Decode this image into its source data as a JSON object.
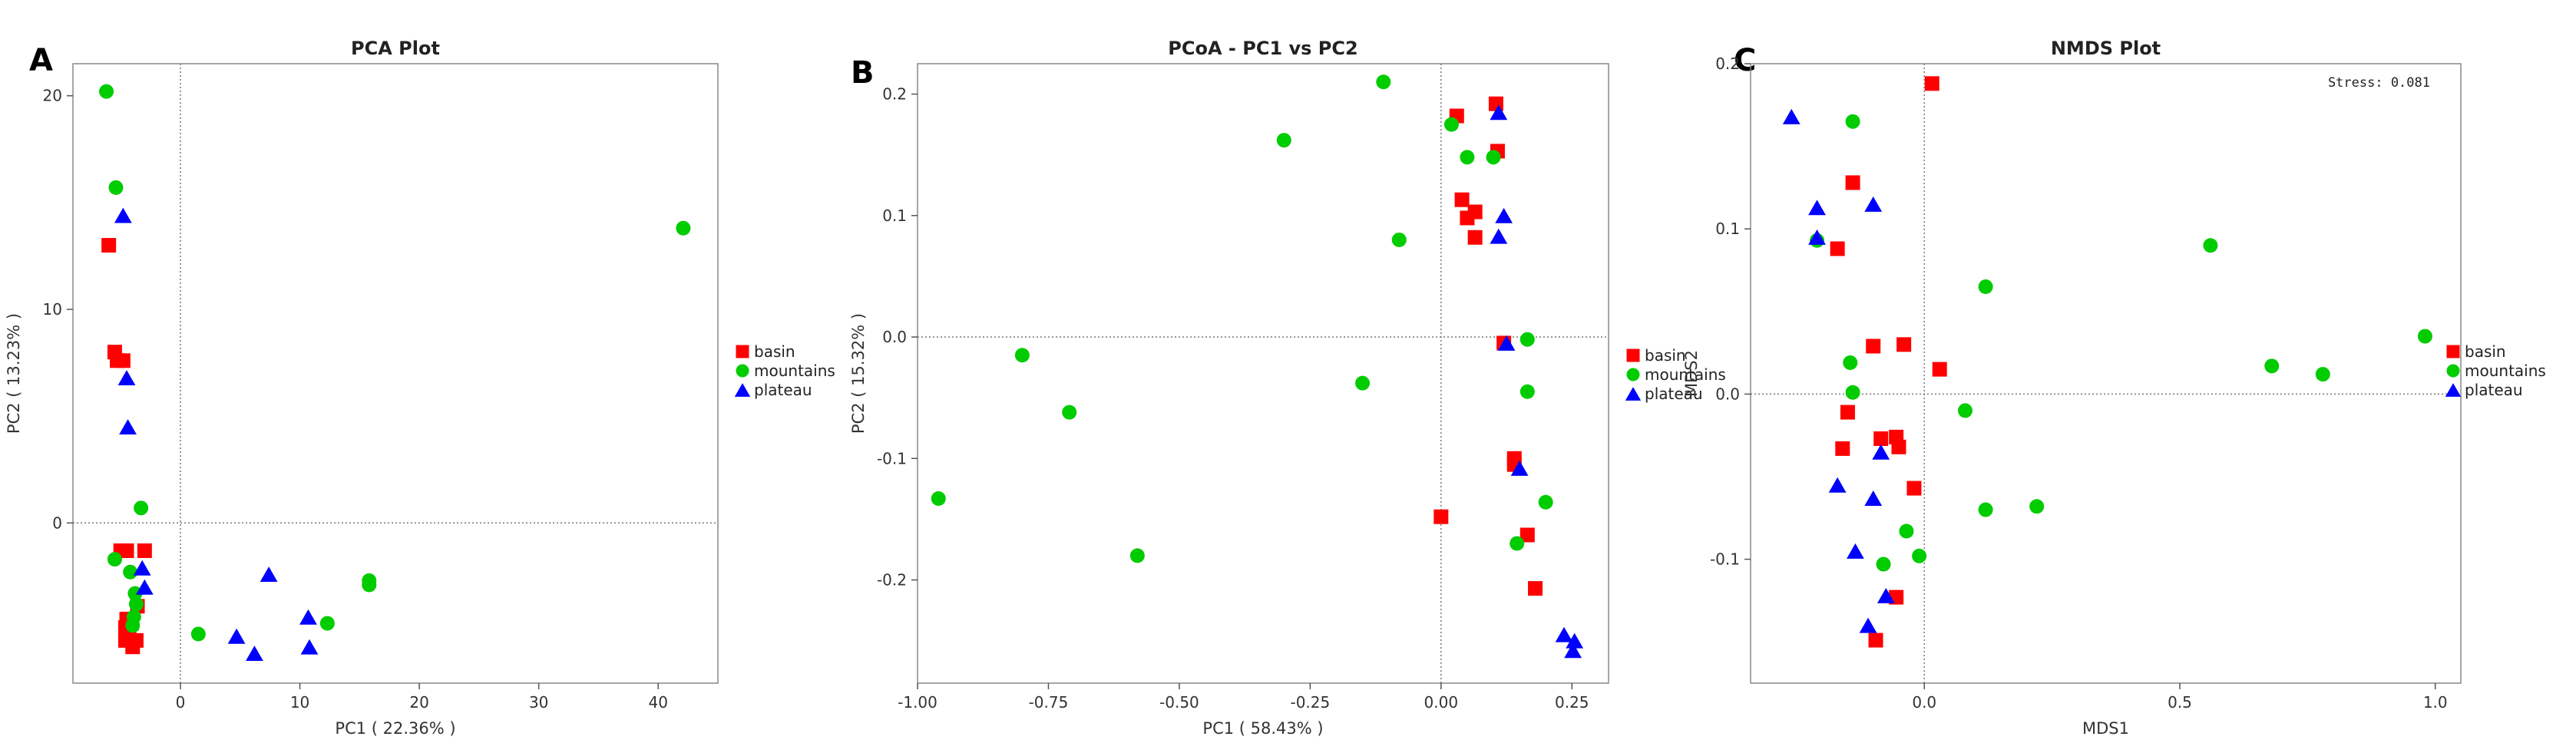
{
  "chart_data": [
    {
      "panel_letter": "A",
      "type": "scatter",
      "title": "PCA Plot",
      "xlabel": "PC1 ( 22.36% )",
      "ylabel": "PC2 ( 13.23% )",
      "xlim": [
        -9,
        45
      ],
      "ylim": [
        -7.5,
        21.5
      ],
      "xticks": [
        0,
        10,
        20,
        30,
        40
      ],
      "xtick_labels": [
        "0",
        "10",
        "20",
        "30",
        "40"
      ],
      "yticks": [
        0,
        10,
        20
      ],
      "ytick_labels": [
        "0",
        "10",
        "20"
      ],
      "ref_x": 0,
      "ref_y": 0,
      "legend_position": "right",
      "series": [
        {
          "name": "basin",
          "marker": "square",
          "color": "#ff0000",
          "points": [
            [
              -6,
              13
            ],
            [
              -5.5,
              8
            ],
            [
              -5.3,
              7.6
            ],
            [
              -4.8,
              7.6
            ],
            [
              -5,
              -1.3
            ],
            [
              -4.5,
              -1.3
            ],
            [
              -3,
              -1.3
            ],
            [
              -4.5,
              -4.5
            ],
            [
              -4.6,
              -4.9
            ],
            [
              -4.3,
              -5.2
            ],
            [
              -4.6,
              -5.5
            ],
            [
              -4.0,
              -5.8
            ],
            [
              -3.7,
              -5.5
            ],
            [
              -4.1,
              -4.7
            ],
            [
              -3.6,
              -3.9
            ]
          ]
        },
        {
          "name": "mountains",
          "marker": "circle",
          "color": "#00cc00",
          "points": [
            [
              -6.2,
              20.2
            ],
            [
              -5.4,
              15.7
            ],
            [
              -3.3,
              0.7
            ],
            [
              -5.5,
              -1.7
            ],
            [
              -4.2,
              -2.3
            ],
            [
              -3.8,
              -3.3
            ],
            [
              -3.7,
              -3.8
            ],
            [
              -3.9,
              -4.4
            ],
            [
              -4.0,
              -4.8
            ],
            [
              1.5,
              -5.2
            ],
            [
              12.3,
              -4.7
            ],
            [
              15.8,
              -2.7
            ],
            [
              15.8,
              -2.9
            ],
            [
              42.1,
              13.8
            ]
          ]
        },
        {
          "name": "plateau",
          "marker": "triangle",
          "color": "#0000ff",
          "points": [
            [
              -4.8,
              14.4
            ],
            [
              -4.5,
              6.8
            ],
            [
              -4.4,
              4.5
            ],
            [
              -3.2,
              -2.1
            ],
            [
              -3.0,
              -3.0
            ],
            [
              7.4,
              -2.4
            ],
            [
              4.7,
              -5.3
            ],
            [
              6.2,
              -6.1
            ],
            [
              10.7,
              -4.4
            ],
            [
              10.8,
              -5.8
            ]
          ]
        }
      ]
    },
    {
      "panel_letter": "B",
      "type": "scatter",
      "title": "PCoA - PC1 vs PC2",
      "xlabel": "PC1 ( 58.43% )",
      "ylabel": "PC2 ( 15.32% )",
      "xlim": [
        -1.0,
        0.32
      ],
      "ylim": [
        -0.285,
        0.225
      ],
      "xticks": [
        -1.0,
        -0.75,
        -0.5,
        -0.25,
        0.0,
        0.25
      ],
      "xtick_labels": [
        "-1.00",
        "-0.75",
        "-0.50",
        "-0.25",
        "0.00",
        "0.25"
      ],
      "yticks": [
        -0.2,
        -0.1,
        0.0,
        0.1,
        0.2
      ],
      "ytick_labels": [
        "-0.2",
        "-0.1",
        "0.0",
        "0.1",
        "0.2"
      ],
      "ref_x": 0,
      "ref_y": 0,
      "legend_position": "right",
      "series": [
        {
          "name": "basin",
          "marker": "square",
          "color": "#ff0000",
          "points": [
            [
              0.03,
              0.182
            ],
            [
              0.105,
              0.192
            ],
            [
              0.108,
              0.153
            ],
            [
              0.04,
              0.113
            ],
            [
              0.05,
              0.098
            ],
            [
              0.065,
              0.103
            ],
            [
              0.065,
              0.082
            ],
            [
              0.12,
              -0.005
            ],
            [
              0.14,
              -0.1
            ],
            [
              0.14,
              -0.105
            ],
            [
              0.165,
              -0.163
            ],
            [
              0.18,
              -0.207
            ],
            [
              0.0,
              -0.148
            ]
          ]
        },
        {
          "name": "mountains",
          "marker": "circle",
          "color": "#00cc00",
          "points": [
            [
              -0.11,
              0.21
            ],
            [
              -0.3,
              0.162
            ],
            [
              0.02,
              0.175
            ],
            [
              0.05,
              0.148
            ],
            [
              0.1,
              0.148
            ],
            [
              -0.08,
              0.08
            ],
            [
              0.165,
              -0.002
            ],
            [
              -0.15,
              -0.038
            ],
            [
              -0.8,
              -0.015
            ],
            [
              -0.71,
              -0.062
            ],
            [
              0.165,
              -0.045
            ],
            [
              -0.96,
              -0.133
            ],
            [
              0.2,
              -0.136
            ],
            [
              -0.58,
              -0.18
            ],
            [
              0.145,
              -0.17
            ]
          ]
        },
        {
          "name": "plateau",
          "marker": "triangle",
          "color": "#0000ff",
          "points": [
            [
              0.11,
              0.185
            ],
            [
              0.12,
              0.1
            ],
            [
              0.11,
              0.083
            ],
            [
              0.125,
              -0.005
            ],
            [
              0.15,
              -0.108
            ],
            [
              0.235,
              -0.245
            ],
            [
              0.255,
              -0.25
            ],
            [
              0.252,
              -0.258
            ]
          ]
        }
      ]
    },
    {
      "panel_letter": "C",
      "type": "scatter",
      "title": "NMDS Plot",
      "xlabel": "MDS1",
      "ylabel": "MDS2",
      "stress_label": "Stress: 0.081",
      "xlim": [
        -0.34,
        1.05
      ],
      "ylim": [
        -0.175,
        0.2
      ],
      "xticks": [
        0.0,
        0.5,
        1.0
      ],
      "xtick_labels": [
        "0.0",
        "0.5",
        "1.0"
      ],
      "yticks": [
        -0.1,
        0.0,
        0.1,
        0.2
      ],
      "ytick_labels": [
        "-0.1",
        "0.0",
        "0.1",
        "0.2"
      ],
      "ref_x": 0,
      "ref_y": 0,
      "legend_position": "right",
      "series": [
        {
          "name": "basin",
          "marker": "square",
          "color": "#ff0000",
          "points": [
            [
              0.015,
              0.188
            ],
            [
              -0.14,
              0.128
            ],
            [
              -0.17,
              0.088
            ],
            [
              -0.1,
              0.029
            ],
            [
              -0.04,
              0.03
            ],
            [
              0.03,
              0.015
            ],
            [
              -0.15,
              -0.011
            ],
            [
              -0.16,
              -0.033
            ],
            [
              -0.085,
              -0.027
            ],
            [
              -0.05,
              -0.032
            ],
            [
              -0.055,
              -0.026
            ],
            [
              -0.02,
              -0.057
            ],
            [
              -0.055,
              -0.123
            ],
            [
              -0.095,
              -0.149
            ]
          ]
        },
        {
          "name": "mountains",
          "marker": "circle",
          "color": "#00cc00",
          "points": [
            [
              -0.14,
              0.165
            ],
            [
              -0.21,
              0.093
            ],
            [
              0.56,
              0.09
            ],
            [
              0.12,
              0.065
            ],
            [
              0.98,
              0.035
            ],
            [
              0.68,
              0.017
            ],
            [
              0.78,
              0.012
            ],
            [
              -0.145,
              0.019
            ],
            [
              -0.14,
              0.001
            ],
            [
              0.08,
              -0.01
            ],
            [
              0.12,
              -0.07
            ],
            [
              0.22,
              -0.068
            ],
            [
              -0.035,
              -0.083
            ],
            [
              -0.01,
              -0.098
            ],
            [
              -0.08,
              -0.103
            ]
          ]
        },
        {
          "name": "plateau",
          "marker": "triangle",
          "color": "#0000ff",
          "points": [
            [
              -0.26,
              0.168
            ],
            [
              -0.21,
              0.113
            ],
            [
              -0.1,
              0.115
            ],
            [
              -0.21,
              0.095
            ],
            [
              -0.085,
              -0.035
            ],
            [
              -0.17,
              -0.055
            ],
            [
              -0.1,
              -0.063
            ],
            [
              -0.135,
              -0.095
            ],
            [
              -0.075,
              -0.122
            ],
            [
              -0.11,
              -0.14
            ]
          ]
        }
      ]
    }
  ]
}
